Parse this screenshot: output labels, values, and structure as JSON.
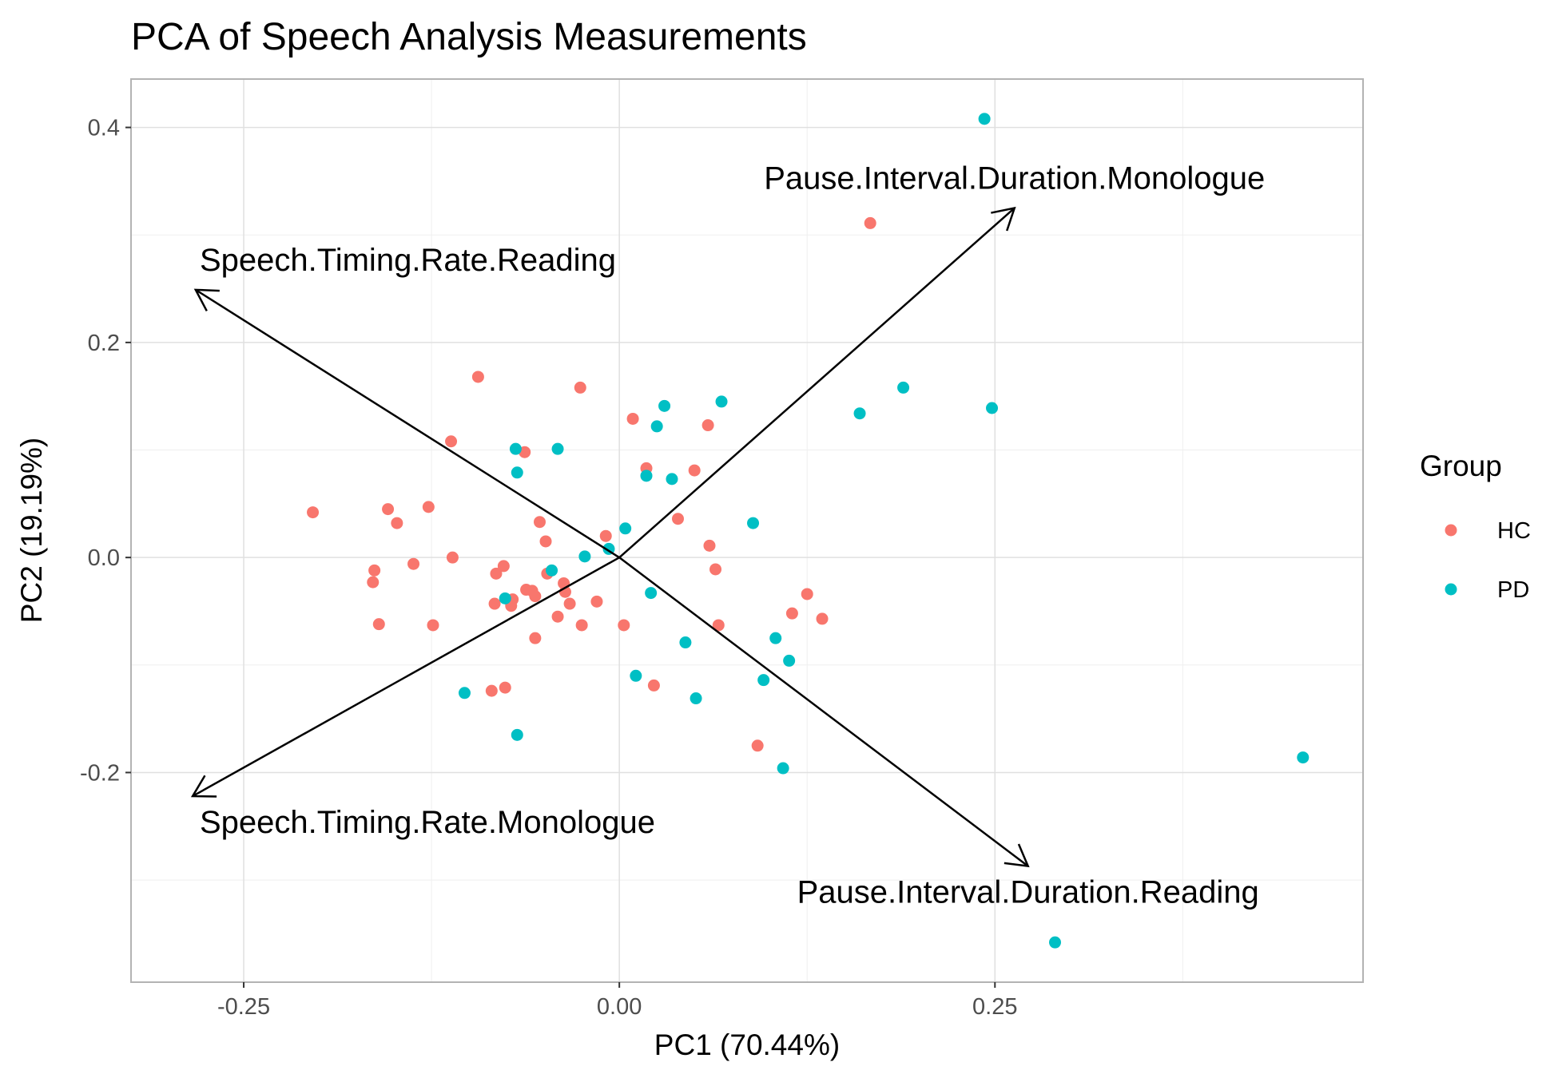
{
  "chart_data": {
    "type": "scatter",
    "title": "PCA of Speech Analysis Measurements",
    "xlabel": "PC1 (70.44%)",
    "ylabel": "PC2 (19.19%)",
    "xlim": [
      -0.325,
      0.495
    ],
    "ylim": [
      -0.395,
      0.445
    ],
    "x_ticks": [
      -0.25,
      0.0,
      0.25
    ],
    "x_tick_labels": [
      "-0.25",
      "0.00",
      "0.25"
    ],
    "y_ticks": [
      -0.2,
      0.0,
      0.2,
      0.4
    ],
    "y_tick_labels": [
      "-0.2",
      "0.0",
      "0.2",
      "0.4"
    ],
    "grid": true,
    "legend": {
      "title": "Group",
      "position": "right",
      "entries": [
        {
          "label": "HC",
          "color": "#F8766D"
        },
        {
          "label": "PD",
          "color": "#00BFC4"
        }
      ]
    },
    "series": [
      {
        "name": "HC",
        "color": "#F8766D",
        "points": [
          [
            0.167,
            0.311
          ],
          [
            -0.094,
            0.168
          ],
          [
            -0.026,
            0.158
          ],
          [
            0.009,
            0.129
          ],
          [
            0.059,
            0.123
          ],
          [
            -0.112,
            0.108
          ],
          [
            -0.063,
            0.098
          ],
          [
            0.018,
            0.083
          ],
          [
            0.05,
            0.081
          ],
          [
            -0.204,
            0.042
          ],
          [
            -0.154,
            0.045
          ],
          [
            -0.127,
            0.047
          ],
          [
            -0.148,
            0.032
          ],
          [
            -0.053,
            0.033
          ],
          [
            0.039,
            0.036
          ],
          [
            -0.049,
            0.015
          ],
          [
            -0.009,
            0.02
          ],
          [
            0.06,
            0.011
          ],
          [
            -0.111,
            0.0
          ],
          [
            -0.137,
            -0.006
          ],
          [
            -0.163,
            -0.012
          ],
          [
            -0.164,
            -0.023
          ],
          [
            -0.077,
            -0.008
          ],
          [
            -0.082,
            -0.015
          ],
          [
            0.064,
            -0.011
          ],
          [
            -0.048,
            -0.015
          ],
          [
            -0.037,
            -0.024
          ],
          [
            -0.062,
            -0.03
          ],
          [
            -0.058,
            -0.031
          ],
          [
            -0.036,
            -0.032
          ],
          [
            -0.056,
            -0.036
          ],
          [
            -0.071,
            -0.039
          ],
          [
            -0.072,
            -0.045
          ],
          [
            -0.083,
            -0.043
          ],
          [
            -0.033,
            -0.043
          ],
          [
            -0.015,
            -0.041
          ],
          [
            0.125,
            -0.034
          ],
          [
            0.115,
            -0.052
          ],
          [
            0.135,
            -0.057
          ],
          [
            -0.16,
            -0.062
          ],
          [
            -0.124,
            -0.063
          ],
          [
            -0.041,
            -0.055
          ],
          [
            -0.025,
            -0.063
          ],
          [
            0.003,
            -0.063
          ],
          [
            0.066,
            -0.063
          ],
          [
            -0.056,
            -0.075
          ],
          [
            -0.085,
            -0.124
          ],
          [
            -0.076,
            -0.121
          ],
          [
            0.023,
            -0.119
          ],
          [
            0.092,
            -0.175
          ]
        ]
      },
      {
        "name": "PD",
        "color": "#00BFC4",
        "points": [
          [
            0.243,
            0.408
          ],
          [
            0.189,
            0.158
          ],
          [
            0.248,
            0.139
          ],
          [
            0.16,
            0.134
          ],
          [
            0.068,
            0.145
          ],
          [
            0.03,
            0.141
          ],
          [
            0.025,
            0.122
          ],
          [
            -0.069,
            0.101
          ],
          [
            -0.041,
            0.101
          ],
          [
            -0.068,
            0.079
          ],
          [
            0.018,
            0.076
          ],
          [
            0.035,
            0.073
          ],
          [
            0.089,
            0.032
          ],
          [
            0.004,
            0.027
          ],
          [
            -0.007,
            0.008
          ],
          [
            -0.023,
            0.001
          ],
          [
            -0.045,
            -0.012
          ],
          [
            0.021,
            -0.033
          ],
          [
            -0.076,
            -0.038
          ],
          [
            0.044,
            -0.079
          ],
          [
            0.104,
            -0.075
          ],
          [
            0.113,
            -0.096
          ],
          [
            0.011,
            -0.11
          ],
          [
            0.096,
            -0.114
          ],
          [
            -0.103,
            -0.126
          ],
          [
            0.051,
            -0.131
          ],
          [
            -0.068,
            -0.165
          ],
          [
            0.109,
            -0.196
          ],
          [
            0.455,
            -0.186
          ],
          [
            0.29,
            -0.358
          ]
        ]
      }
    ],
    "loadings": [
      {
        "label": "Pause.Interval.Duration.Monologue",
        "x": 0.263,
        "y": 0.325
      },
      {
        "label": "Speech.Timing.Rate.Reading",
        "x": -0.282,
        "y": 0.249
      },
      {
        "label": "Speech.Timing.Rate.Monologue",
        "x": -0.284,
        "y": -0.222
      },
      {
        "label": "Pause.Interval.Duration.Reading",
        "x": 0.272,
        "y": -0.287
      }
    ]
  }
}
